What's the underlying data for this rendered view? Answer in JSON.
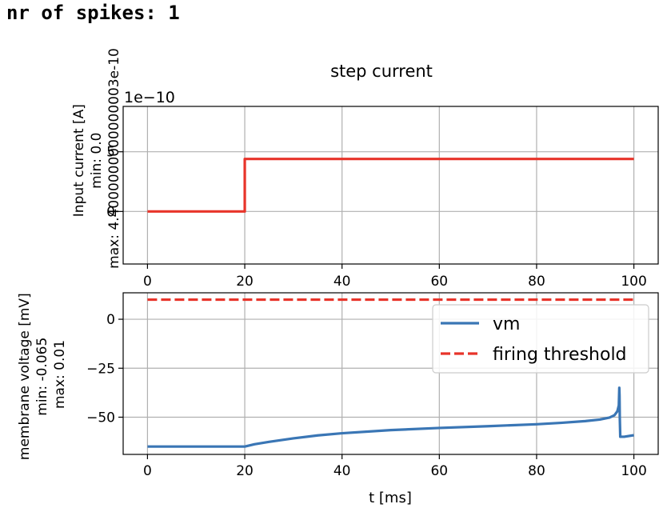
{
  "output_text": "nr of spikes: 1",
  "chart_data": [
    {
      "type": "line",
      "title": "step current",
      "offset_text": "1e−10",
      "ylabel_lines": [
        "Input current [A]",
        "min: 0.0",
        "max: 4.4000000000000003e-10"
      ],
      "xlim": [
        -5,
        105
      ],
      "ylim": [
        -4.4,
        8.8
      ],
      "xticks": [
        0,
        20,
        40,
        60,
        80,
        100
      ],
      "yticks": [
        0,
        5
      ],
      "grid": true,
      "series": [
        {
          "color": "#e8342a",
          "style": "solid",
          "x": [
            0,
            20,
            20,
            100
          ],
          "y": [
            0,
            0,
            4.4,
            4.4
          ]
        }
      ]
    },
    {
      "type": "line",
      "xlabel": "t [ms]",
      "ylabel_lines": [
        "membrane voltage [mV]",
        "min: -0.065",
        "max: 0.01"
      ],
      "xlim": [
        -5,
        105
      ],
      "ylim": [
        -69,
        13.5
      ],
      "xticks": [
        0,
        20,
        40,
        60,
        80,
        100
      ],
      "yticks": [
        0,
        -25,
        -50
      ],
      "grid": true,
      "legend_position": "upper right",
      "series": [
        {
          "name": "vm",
          "color": "#3a76b5",
          "style": "solid",
          "x": [
            0,
            20,
            22,
            25,
            30,
            35,
            40,
            50,
            60,
            70,
            80,
            85,
            90,
            93,
            95,
            96,
            96.6,
            96.9,
            97.0,
            97.05,
            97.1,
            97.2,
            98,
            100
          ],
          "y": [
            -65,
            -65,
            -63.8,
            -62.6,
            -60.8,
            -59.3,
            -58.2,
            -56.6,
            -55.5,
            -54.6,
            -53.6,
            -52.9,
            -52.0,
            -51.2,
            -50.2,
            -49.0,
            -47.0,
            -44.0,
            -35,
            -39,
            -50,
            -60,
            -60,
            -59.2
          ]
        },
        {
          "name": "firing threshold",
          "color": "#e8342a",
          "style": "dashed",
          "x": [
            0,
            100
          ],
          "y": [
            10,
            10
          ]
        }
      ]
    }
  ]
}
